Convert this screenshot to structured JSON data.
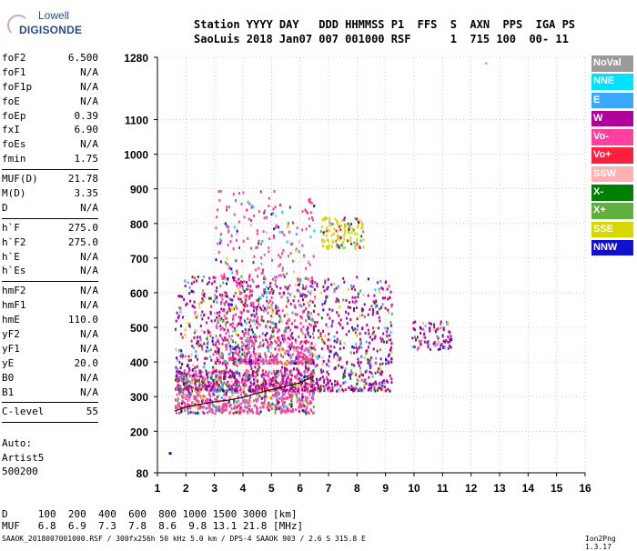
{
  "logo": {
    "line1": "Lowell",
    "line2": "DIGISONDE"
  },
  "header": {
    "line1": "Station YYYY DAY   DDD HHMMSS P1  FFS  S  AXN  PPS  IGA PS",
    "line2": "SaoLuis 2018 Jan07 007 001000 RSF      1  715 100  00- 11"
  },
  "params": [
    {
      "k": "foF2",
      "v": "6.500"
    },
    {
      "k": "foF1",
      "v": "N/A"
    },
    {
      "k": "foF1p",
      "v": "N/A"
    },
    {
      "k": "foE",
      "v": "N/A"
    },
    {
      "k": "foEp",
      "v": "0.39"
    },
    {
      "k": "fxI",
      "v": "6.90"
    },
    {
      "k": "foEs",
      "v": "N/A"
    },
    {
      "k": "fmin",
      "v": "1.75"
    },
    {
      "sep": true
    },
    {
      "k": "MUF(D)",
      "v": "21.78"
    },
    {
      "k": "M(D)",
      "v": "3.35"
    },
    {
      "k": "D",
      "v": "N/A"
    },
    {
      "sep": true
    },
    {
      "k": "h`F",
      "v": "275.0"
    },
    {
      "k": "h`F2",
      "v": "275.0"
    },
    {
      "k": "h`E",
      "v": "N/A"
    },
    {
      "k": "h`Es",
      "v": "N/A"
    },
    {
      "sep": true
    },
    {
      "k": "hmF2",
      "v": "N/A"
    },
    {
      "k": "hmF1",
      "v": "N/A"
    },
    {
      "k": "hmE",
      "v": "110.0"
    },
    {
      "k": "yF2",
      "v": "N/A"
    },
    {
      "k": "yF1",
      "v": "N/A"
    },
    {
      "k": "yE",
      "v": "20.0"
    },
    {
      "k": "B0",
      "v": "N/A"
    },
    {
      "k": "B1",
      "v": "N/A"
    },
    {
      "sep": true
    },
    {
      "k": "C-level",
      "v": "55"
    },
    {
      "sep": true
    }
  ],
  "auto": [
    "Auto:",
    "Artist5",
    "500200"
  ],
  "legend": [
    {
      "label": "NoVal",
      "color": "#9a9a9a"
    },
    {
      "label": "NNE",
      "color": "#00e0ff"
    },
    {
      "label": "E",
      "color": "#3aa8ff"
    },
    {
      "label": "W",
      "color": "#b0009a"
    },
    {
      "label": "Vo-",
      "color": "#ff40a0"
    },
    {
      "label": "Vo+",
      "color": "#ff2040"
    },
    {
      "label": "SSW",
      "color": "#ffb0b0"
    },
    {
      "label": "X-",
      "color": "#008000"
    },
    {
      "label": "X+",
      "color": "#60b040"
    },
    {
      "label": "SSE",
      "color": "#d8d800"
    },
    {
      "label": "NNW",
      "color": "#1010d0"
    }
  ],
  "mufTable": {
    "line1": "D     100  200  400  600  800 1000 1500 3000 [km]",
    "line2": "MUF   6.8  6.9  7.3  7.8  8.6  9.8 13.1 21.8 [MHz]"
  },
  "footer": "SAAOK_2018007001000.RSF / 300fx256h 50 kHz 5.0 km / DPS-4 SAAOK 903 / 2.6 S 315.8 E",
  "version": "Ion2Png 1.3.17",
  "chart_data": {
    "type": "scatter",
    "title": "",
    "xlabel": "",
    "ylabel": "",
    "xlim": [
      1,
      16
    ],
    "ylim": [
      80,
      1280
    ],
    "xticks": [
      1,
      2,
      3,
      4,
      5,
      6,
      7,
      8,
      9,
      10,
      11,
      12,
      13,
      14,
      15,
      16
    ],
    "yticks": [
      80,
      200,
      300,
      400,
      500,
      600,
      700,
      800,
      900,
      1000,
      1100,
      1280
    ],
    "grid": true,
    "clusters": [
      {
        "name": "main F trace",
        "x": [
          1.6,
          6.5
        ],
        "y": [
          255,
          380
        ],
        "color": "#ff40a0"
      },
      {
        "name": "spread F",
        "x": [
          1.6,
          9.2
        ],
        "y": [
          320,
          650
        ],
        "color": "#b0009a"
      },
      {
        "name": "high spread",
        "x": [
          3.0,
          6.5
        ],
        "y": [
          400,
          900
        ],
        "color": "#ff40a0"
      },
      {
        "name": "second-hop",
        "x": [
          6.7,
          8.2
        ],
        "y": [
          730,
          820
        ],
        "color": "#d8d800"
      },
      {
        "name": "upper scatter",
        "x": [
          9.9,
          11.3
        ],
        "y": [
          440,
          520
        ],
        "color": "#b0009a"
      }
    ],
    "trace_x": [
      1.6,
      2.0,
      2.5,
      3.0,
      3.5,
      4.0,
      4.5,
      5.0,
      5.5,
      6.0,
      6.5
    ],
    "trace_y": [
      258,
      270,
      278,
      285,
      290,
      298,
      310,
      320,
      330,
      340,
      360
    ]
  }
}
